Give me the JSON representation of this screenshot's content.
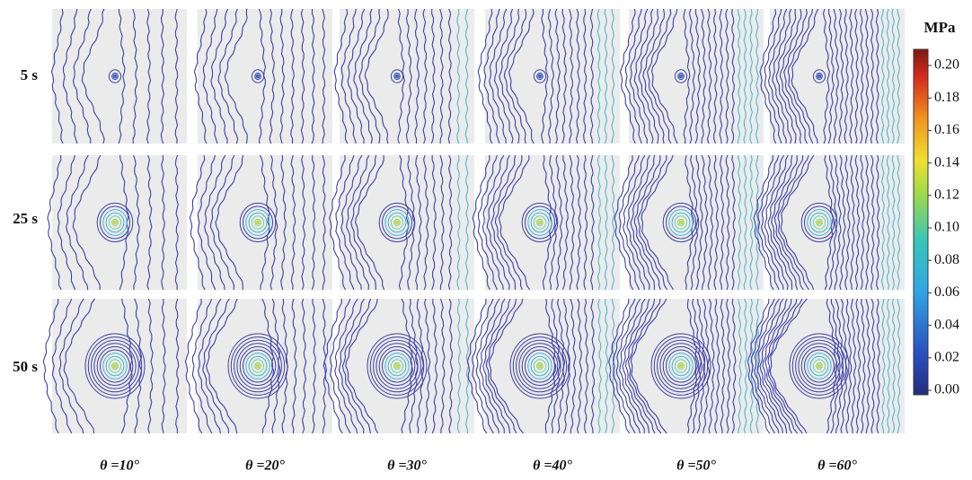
{
  "row_labels": [
    "5 s",
    "25 s",
    "50 s"
  ],
  "column_labels": [
    "θ =10°",
    "θ =20°",
    "θ =30°",
    "θ =40°",
    "θ =50°",
    "θ =60°"
  ],
  "colorbar": {
    "unit": "MPa",
    "ticks": [
      "0.20",
      "0.18",
      "0.16",
      "0.14",
      "0.12",
      "0.10",
      "0.08",
      "0.06",
      "0.04",
      "0.02",
      "0.00"
    ]
  }
}
